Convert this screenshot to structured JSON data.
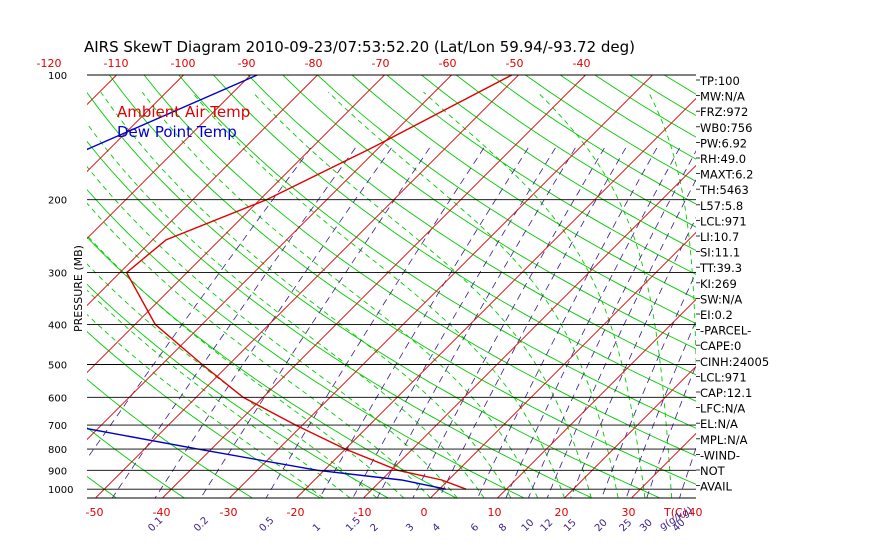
{
  "chart_data": {
    "type": "line",
    "title": "AIRS SkewT Diagram 2010-09-23/07:53:52.20 (Lat/Lon 59.94/-93.72 deg)",
    "ylabel": "PRESSURE (MB)",
    "x_bottom_unit": "T(C)",
    "x_bottom_mixing_unit": "g(g/kg)",
    "top_temps": [
      -120,
      -110,
      -100,
      -90,
      -80,
      -70,
      -60,
      -50,
      -40
    ],
    "bottom_temps": [
      -50,
      -40,
      -30,
      -20,
      -10,
      0,
      10,
      20,
      30,
      40
    ],
    "pressure_levels": [
      100,
      200,
      300,
      400,
      500,
      600,
      700,
      800,
      900,
      1000
    ],
    "mixing_ratio_labels": [
      "0.1",
      "0.2",
      "0.5",
      "1",
      "1.5",
      "2",
      "3",
      "4",
      "6",
      "8",
      "10",
      "12",
      "15",
      "20",
      "25",
      "30",
      "40"
    ],
    "ylim": [
      1000,
      100
    ],
    "legend": {
      "placement": "top-left"
    },
    "series": [
      {
        "name": "Ambient Air Temp",
        "color": "#e00000",
        "points": [
          [
            100,
            -51
          ],
          [
            150,
            -61
          ],
          [
            200,
            -69
          ],
          [
            250,
            -78
          ],
          [
            300,
            -79
          ],
          [
            400,
            -67
          ],
          [
            500,
            -54
          ],
          [
            600,
            -43
          ],
          [
            700,
            -31
          ],
          [
            800,
            -20
          ],
          [
            900,
            -9
          ],
          [
            950,
            -1
          ],
          [
            1000,
            4
          ]
        ]
      },
      {
        "name": "Dew Point Temp",
        "color": "#0000cc",
        "points": [
          [
            100,
            -89
          ],
          [
            150,
            -103
          ],
          [
            200,
            -113
          ],
          [
            250,
            -120
          ],
          [
            300,
            -121
          ],
          [
            400,
            -108
          ],
          [
            500,
            -93
          ],
          [
            600,
            -79
          ],
          [
            700,
            -65
          ],
          [
            800,
            -42
          ],
          [
            900,
            -21
          ],
          [
            950,
            -7
          ],
          [
            1000,
            1
          ]
        ]
      }
    ]
  },
  "indices": [
    "TP:100",
    "MW:N/A",
    "FRZ:972",
    "WB0:756",
    "PW:6.92",
    "RH:49.0",
    "MAXT:6.2",
    "TH:5463",
    "L57:5.8",
    "LCL:971",
    "LI:10.7",
    "SI:11.1",
    "TT:39.3",
    "KI:269",
    "SW:N/A",
    "EI:0.2",
    "-PARCEL-",
    "CAPE:0",
    "CINH:24005",
    "LCL:971",
    "CAP:12.1",
    "LFC:N/A",
    "EL:N/A",
    "MPL:N/A",
    "-WIND-",
    "NOT",
    "AVAIL"
  ],
  "colors": {
    "isotherm": "#e00000",
    "dry_adiabat": "#00cc00",
    "moist_adiabat": "#00cc00",
    "mixing_ratio": "#3a1a8a",
    "grid": "#000000",
    "temp": "#e00000",
    "dewpoint": "#0000cc"
  }
}
